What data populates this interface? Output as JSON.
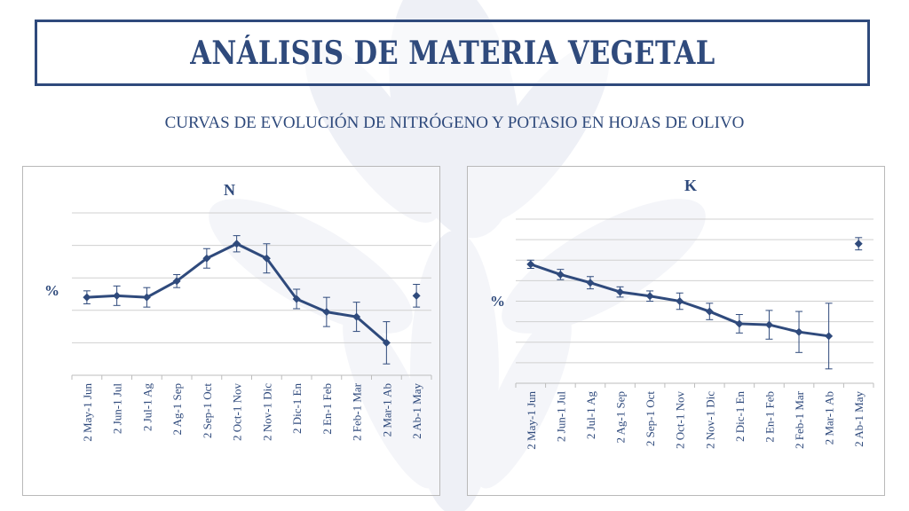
{
  "title": "ANÁLISIS DE MATERIA VEGETAL",
  "subtitle": "CURVAS DE EVOLUCIÓN DE NITRÓGENO Y POTASIO EN HOJAS DE OLIVO",
  "colors": {
    "accent": "#2f4a7c",
    "grid": "#d0d0d0",
    "axis": "#bdbdbd",
    "series": "#2f4a7c"
  },
  "chart_data": [
    {
      "type": "line",
      "title": "N",
      "ylabel": "%",
      "xlabel": "",
      "grid": true,
      "ylim": [
        0,
        5
      ],
      "categories": [
        "2 May-1 Jun",
        "2 Jun-1 Jul",
        "2 Jul-1 Ag",
        "2 Ag-1 Sep",
        "2 Sep-1 Oct",
        "2 Oct-1 Nov",
        "2 Nov-1 Dic",
        "2 Dic-1 En",
        "2 En-1 Feb",
        "2 Feb-1 Mar",
        "2 Mar-1 Ab",
        "2 Ab-1 May"
      ],
      "series": [
        {
          "values": [
            2.4,
            2.45,
            2.4,
            2.9,
            3.6,
            4.05,
            3.6,
            2.35,
            1.95,
            1.8,
            1.0,
            2.45
          ],
          "errors": [
            0.2,
            0.3,
            0.3,
            0.2,
            0.3,
            0.25,
            0.45,
            0.3,
            0.45,
            0.45,
            0.65,
            0.35
          ],
          "connected": [
            true,
            true,
            true,
            true,
            true,
            true,
            true,
            true,
            true,
            true,
            true,
            false
          ]
        }
      ]
    },
    {
      "type": "line",
      "title": "K",
      "ylabel": "%",
      "xlabel": "",
      "grid": true,
      "ylim": [
        0,
        8
      ],
      "categories": [
        "2 May-1 Jun",
        "2 Jun-1 Jul",
        "2 Jul-1 Ag",
        "2 Ag-1 Sep",
        "2 Sep-1 Oct",
        "2 Oct-1 Nov",
        "2 Nov-1 Dic",
        "2 Dic-1 En",
        "2 En-1 Feb",
        "2 Feb-1 Mar",
        "2 Mar-1 Ab",
        "2 Ab-1 May"
      ],
      "series": [
        {
          "values": [
            5.8,
            5.3,
            4.9,
            4.45,
            4.25,
            4.0,
            3.5,
            2.9,
            2.85,
            2.5,
            2.3,
            6.8
          ],
          "errors": [
            0.2,
            0.25,
            0.3,
            0.25,
            0.25,
            0.4,
            0.4,
            0.45,
            0.7,
            1.0,
            1.6,
            0.3
          ],
          "connected": [
            true,
            true,
            true,
            true,
            true,
            true,
            true,
            true,
            true,
            true,
            true,
            false
          ]
        }
      ]
    }
  ]
}
